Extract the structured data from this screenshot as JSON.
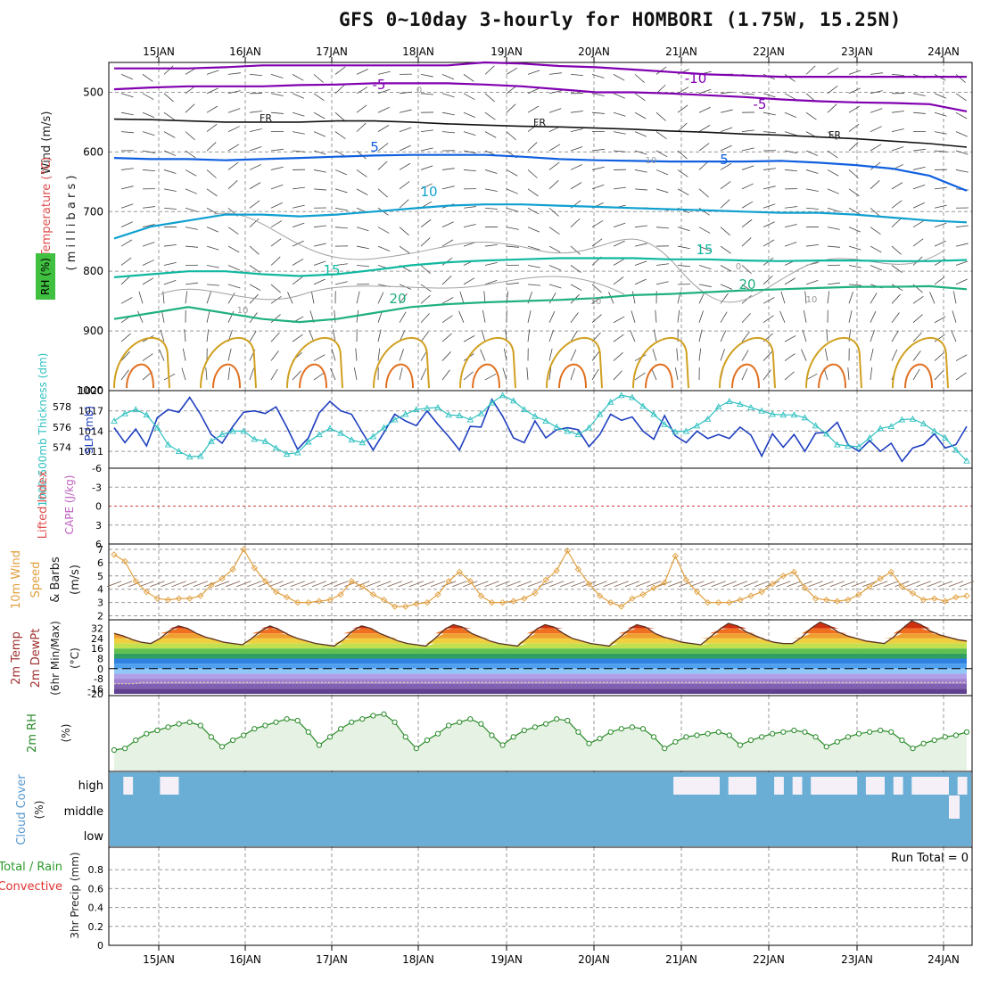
{
  "title": "GFS 0~10day 3-hourly for HOMBORI (1.75W, 15.25N)",
  "dates": [
    "15JAN",
    "16JAN",
    "17JAN",
    "18JAN",
    "19JAN",
    "20JAN",
    "21JAN",
    "22JAN",
    "23JAN",
    "24JAN"
  ],
  "colors": {
    "grid": "#9a9a9a",
    "temp_cold": "#8000b0",
    "temp_freeze": "#111111",
    "temp_cool": "#1060e0",
    "temp_mild": "#10a0d0",
    "temp_warm": "#10b8a0",
    "temp_20": "#20b080",
    "rh_contour": "#d0a020",
    "rh_contour_2": "#e07020",
    "slp": "#1f3fbf",
    "thickness": "#30c0c0",
    "cape_line": "#d04040",
    "wind10m": "#e0a040",
    "barb": "#806050",
    "rh2m": "#2a8a2a",
    "rh2m_fill": "#e6f2e3",
    "cloud": "#6aaed6",
    "cloud_gap": "#f5f0f8"
  },
  "chart_data": [
    {
      "id": "upper_air",
      "type": "heatmap",
      "ylabel_parts": [
        "Wind (m/s)",
        "Temperature (°C)",
        "RH (%)",
        "( m i l l i b a r s )"
      ],
      "y_ticks": [
        "500",
        "600",
        "700",
        "800",
        "900",
        "1000"
      ],
      "ylim": [
        1000,
        450
      ],
      "contour_labels": [
        "-10",
        "-5",
        "-5",
        "FR",
        "FR",
        "FR",
        "5",
        "5",
        "10",
        "15",
        "15",
        "20",
        "20",
        "10",
        "10",
        "10",
        "0",
        "10",
        "0"
      ],
      "isotherms": [
        {
          "name": "-10",
          "values": [
            460,
            460,
            460,
            458,
            455,
            455,
            455,
            455,
            455,
            455,
            450,
            452,
            456,
            458,
            462,
            466,
            470,
            472,
            474,
            474,
            474,
            474,
            474,
            474
          ]
        },
        {
          "name": "-5",
          "values": [
            495,
            492,
            490,
            490,
            490,
            488,
            487,
            485,
            485,
            485,
            487,
            490,
            495,
            500,
            500,
            502,
            505,
            508,
            512,
            515,
            517,
            518,
            520,
            532
          ]
        },
        {
          "name": "FR",
          "values": [
            545,
            546,
            548,
            550,
            550,
            550,
            548,
            548,
            550,
            553,
            555,
            557,
            558,
            560,
            562,
            565,
            567,
            570,
            572,
            575,
            578,
            582,
            586,
            592
          ]
        },
        {
          "name": "5",
          "values": [
            610,
            612,
            612,
            614,
            612,
            610,
            608,
            606,
            605,
            605,
            605,
            608,
            612,
            614,
            615,
            616,
            616,
            616,
            615,
            618,
            622,
            628,
            640,
            665
          ]
        },
        {
          "name": "10",
          "values": [
            745,
            725,
            715,
            705,
            705,
            708,
            705,
            700,
            695,
            690,
            688,
            688,
            690,
            692,
            694,
            696,
            698,
            700,
            702,
            702,
            705,
            710,
            715,
            718
          ]
        },
        {
          "name": "15",
          "values": [
            810,
            805,
            800,
            800,
            805,
            808,
            805,
            798,
            790,
            785,
            782,
            780,
            778,
            778,
            778,
            780,
            780,
            782,
            783,
            782,
            782,
            783,
            783,
            781
          ]
        },
        {
          "name": "20",
          "values": [
            880,
            870,
            860,
            870,
            880,
            885,
            880,
            870,
            860,
            855,
            852,
            850,
            848,
            845,
            840,
            838,
            835,
            832,
            830,
            828,
            826,
            826,
            825,
            830
          ]
        }
      ]
    },
    {
      "id": "slp_thickness",
      "type": "line",
      "ylabel_left": "1000-500mb Thickness (dm)",
      "ylabel_right": "SLP (mb)",
      "left_ticks": [
        "578",
        "576",
        "574"
      ],
      "right_ticks": [
        "1020",
        "1017",
        "1014",
        "1011"
      ],
      "ylim_slp": [
        1008.5,
        1020
      ],
      "series": [
        {
          "name": "SLP (mb)",
          "values": [
            1014.5,
            1012.3,
            1014.3,
            1011.8,
            1016.0,
            1017.2,
            1016.8,
            1019.0,
            1016.5,
            1013.5,
            1012.2,
            1014.7,
            1016.8,
            1017.0,
            1016.6,
            1017.6,
            1014.6,
            1011.3,
            1013.0,
            1016.7,
            1018.4,
            1017.0,
            1016.5,
            1013.8,
            1011.2,
            1013.8,
            1016.5,
            1015.5,
            1014.8,
            1017.0,
            1015.0,
            1013.2,
            1011.2,
            1014.7,
            1014.6,
            1018.7,
            1016.2,
            1013.0,
            1012.3,
            1015.5,
            1013.0,
            1014.2,
            1014.5,
            1014.2,
            1011.7,
            1013.5,
            1016.5,
            1015.6,
            1016.1,
            1014.0,
            1012.8,
            1016.3,
            1013.3,
            1012.3,
            1014.0,
            1012.9,
            1013.5,
            1012.9,
            1014.6,
            1013.4,
            1010.3,
            1013.6,
            1011.6,
            1013.5,
            1011.0,
            1013.7,
            1013.8,
            1015.3,
            1012.0,
            1011.0,
            1012.6,
            1011.0,
            1012.2,
            1009.5,
            1011.5,
            1012.0,
            1013.6,
            1011.5,
            1012.0,
            1014.7
          ]
        },
        {
          "name": "Thickness",
          "values": [
            1015.5,
            1016.6,
            1017.2,
            1016.4,
            1014.5,
            1012.0,
            1011.0,
            1010.2,
            1010.3,
            1012.5,
            1013.5,
            1014.0,
            1014.0,
            1012.8,
            1012.5,
            1011.5,
            1010.6,
            1010.8,
            1012.4,
            1013.5,
            1014.4,
            1013.7,
            1012.7,
            1012.3,
            1013.2,
            1014.5,
            1015.7,
            1016.5,
            1017.2,
            1017.4,
            1017.5,
            1016.4,
            1016.3,
            1015.7,
            1016.6,
            1018.2,
            1019.3,
            1018.5,
            1017.2,
            1016.2,
            1015.5,
            1014.6,
            1014.0,
            1013.5,
            1014.5,
            1016.5,
            1018.3,
            1019.3,
            1019.0,
            1017.7,
            1016.5,
            1015.0,
            1013.9,
            1014.0,
            1014.8,
            1015.8,
            1017.6,
            1018.4,
            1018.0,
            1017.5,
            1017.0,
            1016.5,
            1016.4,
            1016.4,
            1016.0,
            1014.8,
            1013.6,
            1012.0,
            1011.8,
            1011.7,
            1013.0,
            1014.4,
            1014.7,
            1015.7,
            1015.8,
            1015.1,
            1014.0,
            1013.0,
            1011.2,
            1009.6
          ]
        }
      ]
    },
    {
      "id": "stability",
      "type": "line",
      "ylabel_left": "Lifted Index",
      "ylabel_right": "CAPE (J/kg)",
      "y_ticks": [
        "-6",
        "-3",
        "0",
        "3",
        "6"
      ],
      "ylim": [
        6,
        -6
      ],
      "series": [
        {
          "name": "Lifted Index",
          "values": []
        }
      ]
    },
    {
      "id": "wind10m",
      "type": "line",
      "ylabel": "10m Wind Speed & Barbs (m/s)",
      "y_ticks": [
        "2",
        "3",
        "4",
        "5",
        "6",
        "7"
      ],
      "ylim": [
        1.7,
        7.4
      ],
      "series": [
        {
          "name": "10m Wind Speed",
          "values": [
            6.6,
            6.1,
            4.6,
            3.8,
            3.3,
            3.2,
            3.3,
            3.3,
            3.5,
            4.3,
            4.8,
            5.5,
            7.0,
            5.6,
            4.6,
            3.8,
            3.4,
            3.0,
            3.0,
            3.1,
            3.2,
            3.6,
            4.6,
            4.2,
            3.6,
            3.2,
            2.7,
            2.7,
            2.9,
            3.0,
            3.6,
            4.6,
            5.3,
            4.6,
            3.5,
            3.0,
            3.0,
            3.1,
            3.3,
            3.7,
            4.7,
            5.4,
            6.9,
            5.5,
            4.4,
            3.5,
            3.0,
            2.7,
            3.3,
            3.6,
            4.1,
            4.5,
            6.5,
            4.7,
            3.8,
            3.0,
            3.0,
            3.0,
            3.2,
            3.5,
            3.8,
            4.4,
            5.0,
            5.3,
            4.1,
            3.3,
            3.2,
            3.1,
            3.2,
            3.6,
            4.2,
            4.8,
            5.3,
            4.2,
            3.7,
            3.2,
            3.3,
            3.1,
            3.4,
            3.5
          ]
        }
      ]
    },
    {
      "id": "temp2m",
      "type": "area",
      "ylabel": "2m Temp 2m DewPt (6hr Min/Max) (°C)",
      "y_ticks": [
        "32",
        "24",
        "16",
        "8",
        "0",
        "-8",
        "-16",
        "-20"
      ],
      "ylim": [
        -20,
        36
      ],
      "series": [
        {
          "name": "2m Temp",
          "values": [
            28,
            26,
            23,
            21,
            20,
            24,
            30,
            34,
            32,
            28,
            25,
            23,
            21,
            20,
            19,
            24,
            30,
            34,
            31,
            27,
            24,
            22,
            20,
            19,
            18,
            23,
            30,
            34,
            32,
            28,
            25,
            22,
            20,
            19,
            18,
            24,
            31,
            35,
            33,
            28,
            25,
            22,
            20,
            19,
            18,
            24,
            31,
            35,
            33,
            28,
            24,
            22,
            20,
            19,
            18,
            24,
            30,
            35,
            33,
            28,
            25,
            23,
            21,
            20,
            19,
            25,
            31,
            36,
            34,
            29,
            26,
            23,
            21,
            20,
            20,
            25,
            32,
            37,
            34,
            29,
            26,
            24,
            22,
            21,
            20,
            25,
            32,
            38,
            35,
            30,
            27,
            25,
            23,
            22
          ]
        },
        {
          "name": "2m DewPt",
          "values": [
            -12,
            -12,
            -12,
            -11,
            -11,
            -11,
            -11,
            -11,
            -11,
            -11,
            -11,
            -11,
            -11,
            -11,
            -11,
            -11,
            -11,
            -11,
            -11,
            -11,
            -11,
            -11,
            -11,
            -11,
            -11,
            -11,
            -11,
            -11,
            -11,
            -11,
            -11,
            -11,
            -11,
            -11,
            -11,
            -11,
            -11,
            -11,
            -11,
            -11,
            -11,
            -11,
            -11,
            -11,
            -11,
            -11,
            -11,
            -11,
            -11,
            -11,
            -11,
            -11,
            -11,
            -11,
            -11,
            -11,
            -11,
            -11,
            -11,
            -11,
            -11,
            -11,
            -11,
            -11,
            -11,
            -11,
            -11,
            -11,
            -11,
            -11,
            -11,
            -11,
            -11,
            -11,
            -11,
            -11,
            -11,
            -11,
            -11,
            -11,
            -11,
            -11,
            -11,
            -11,
            -11,
            -11,
            -11,
            -11,
            -11,
            -11,
            -11,
            -11,
            -11,
            -11
          ]
        }
      ]
    },
    {
      "id": "rh2m",
      "type": "area",
      "ylabel": "2m RH",
      "unit": "(%)",
      "series": [
        {
          "name": "2m RH",
          "values": [
            12,
            13,
            18,
            22,
            24,
            26,
            28,
            29,
            27,
            20,
            14,
            18,
            21,
            25,
            27,
            29,
            31,
            30,
            23,
            15,
            20,
            25,
            29,
            31,
            33,
            34,
            29,
            20,
            13,
            18,
            22,
            27,
            29,
            31,
            28,
            21,
            15,
            20,
            24,
            26,
            28,
            31,
            30,
            23,
            16,
            19,
            23,
            25,
            26,
            25,
            20,
            13,
            17,
            20,
            21,
            22,
            23,
            21,
            15,
            18,
            20,
            22,
            23,
            24,
            23,
            20,
            14,
            17,
            20,
            22,
            23,
            24,
            23,
            18,
            13,
            16,
            18,
            20,
            21,
            23
          ]
        }
      ]
    },
    {
      "id": "cloud",
      "type": "heatmap",
      "ylabel": "Cloud Cover (%)",
      "rows": [
        "high",
        "middle",
        "low"
      ],
      "gaps_high": [
        0,
        1,
        0,
        0,
        0,
        1,
        1,
        0,
        0,
        0,
        0,
        0,
        0,
        0,
        0,
        0,
        0,
        0,
        0,
        0,
        0,
        0,
        0,
        0,
        0,
        0,
        0,
        0,
        0,
        0,
        0,
        0,
        0,
        0,
        0,
        0,
        0,
        0,
        0,
        0,
        0,
        0,
        0,
        0,
        0,
        0,
        0,
        0,
        0,
        0,
        0,
        0,
        0,
        0,
        0,
        0,
        0,
        0,
        0,
        0,
        0,
        1,
        1,
        1,
        1,
        1,
        0,
        1,
        1,
        1,
        0,
        0,
        1,
        0,
        1,
        0,
        1,
        1,
        1,
        1,
        1,
        0,
        1,
        1,
        0,
        1,
        0,
        1,
        1,
        1,
        1,
        0,
        1
      ]
    },
    {
      "id": "precip",
      "type": "bar",
      "ylabel_left": "Total / Rain Convective",
      "ylabel_right": "3hr Precip (mm)",
      "y_ticks": [
        "0",
        "0.2",
        "0.4",
        "0.6",
        "0.8"
      ],
      "ylim": [
        0,
        1.0
      ],
      "run_total": "Run Total = 0",
      "series": [
        {
          "name": "Total",
          "values": []
        }
      ]
    }
  ]
}
